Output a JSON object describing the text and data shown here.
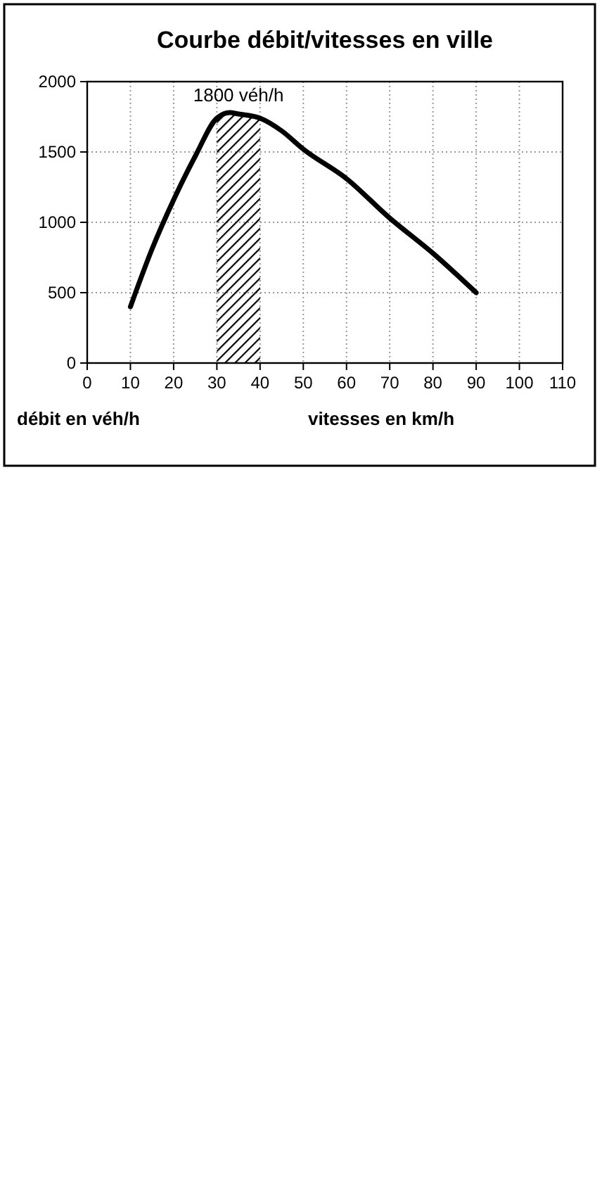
{
  "chart_data": {
    "type": "line",
    "title": "Courbe débit/vitesses en ville",
    "xlabel": "vitesses en km/h",
    "ylabel": "débit en véh/h",
    "x": [
      10,
      15,
      20,
      25,
      30,
      33,
      35,
      40,
      45,
      50,
      60,
      70,
      80,
      90
    ],
    "series": [
      {
        "color": "#000000",
        "values": [
          400,
          810,
          1160,
          1470,
          1740,
          1780,
          1770,
          1740,
          1650,
          1520,
          1310,
          1030,
          780,
          500
        ]
      }
    ],
    "xlim": [
      0,
      110
    ],
    "xticks": [
      0,
      10,
      20,
      30,
      40,
      50,
      60,
      70,
      80,
      90,
      100,
      110
    ],
    "ylim": [
      0,
      2000
    ],
    "yticks": [
      0,
      500,
      1000,
      1500,
      2000
    ],
    "bands": [
      {
        "axis": "x",
        "from": 30,
        "to": 40,
        "label": "1800 véh/h",
        "color": "#000000"
      }
    ],
    "grid": true,
    "marker": "none",
    "line_style": "solid"
  }
}
